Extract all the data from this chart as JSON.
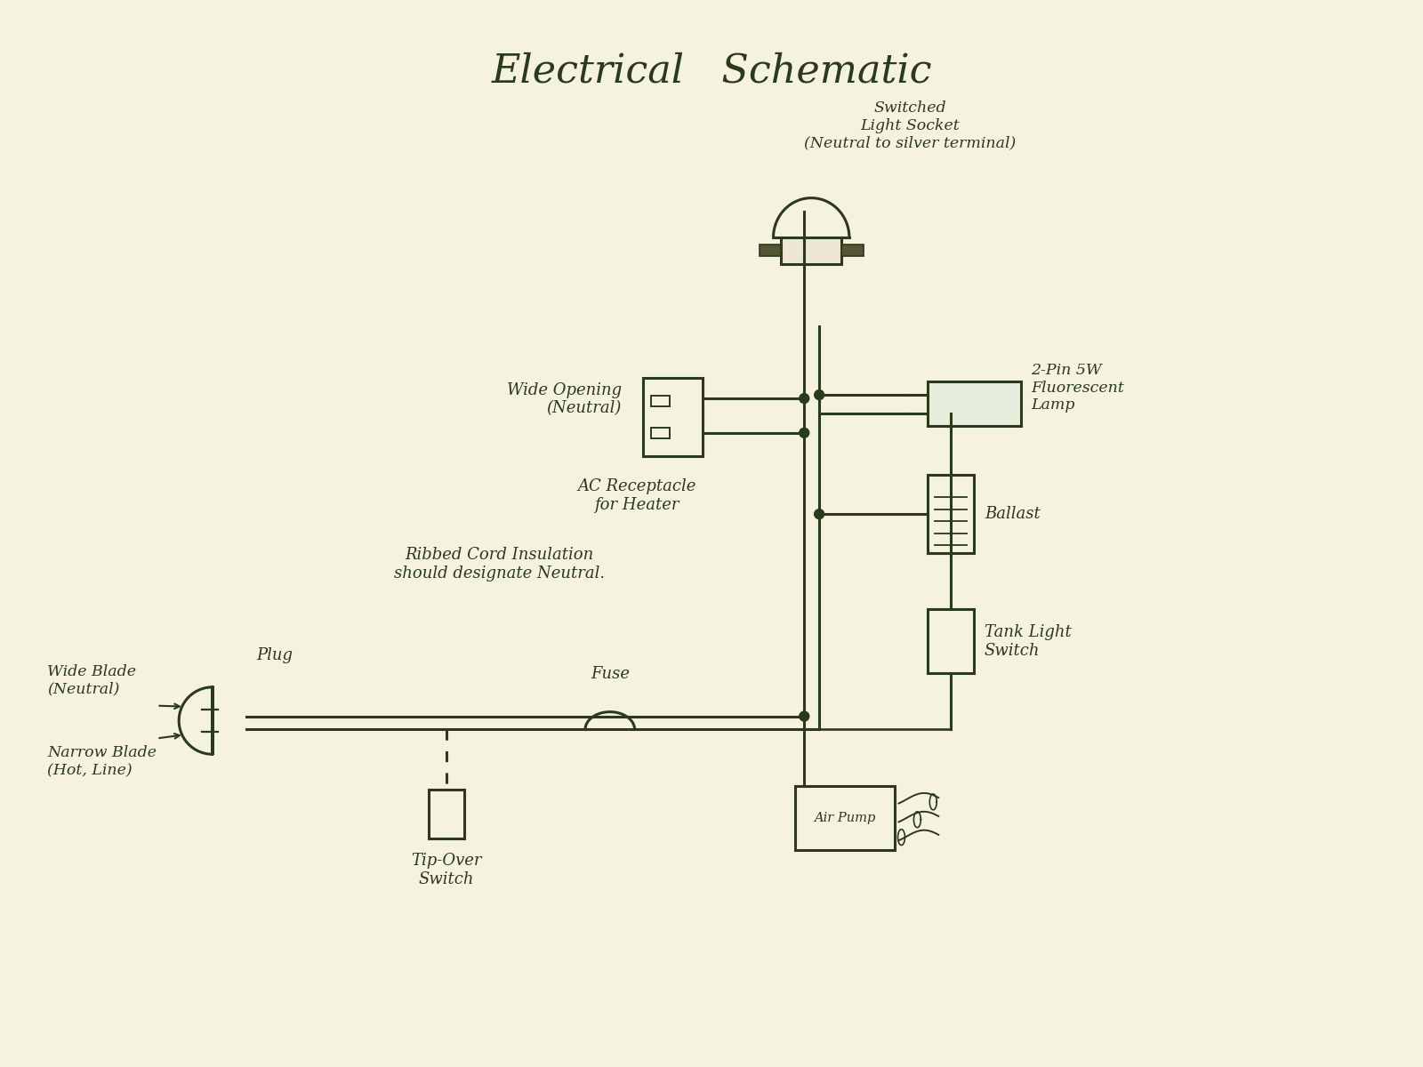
{
  "title": "Electrical   Schematic",
  "bg_color": "#f5f2e0",
  "ink_color": "#2a3a1a",
  "title_fontsize": 32,
  "label_fontsize": 13,
  "fig_width": 16.0,
  "fig_height": 12.0,
  "labels": {
    "switched_socket": "Switched\nLight Socket\n(Neutral to silver terminal)",
    "wide_opening": "Wide Opening\n(Neutral)",
    "ac_receptacle": "AC Receptacle\nfor Heater",
    "ribbed_cord": "Ribbed Cord Insulation\nshould designate Neutral.",
    "wide_blade": "Wide Blade\n(Neutral)",
    "narrow_blade": "Narrow Blade\n(Hot, Line)",
    "plug": "Plug",
    "tip_over": "Tip-Over\nSwitch",
    "fuse": "Fuse",
    "air_pump": "Air Pump",
    "ballast": "Ballast",
    "fluorescent": "2-Pin 5W\nFluorescent\nLamp",
    "tank_light": "Tank Light\nSwitch"
  }
}
